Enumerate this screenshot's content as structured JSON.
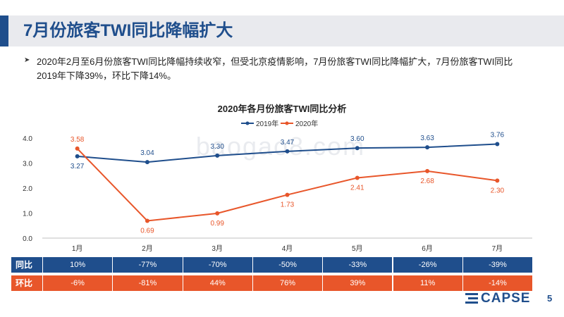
{
  "slide": {
    "title": "7月份旅客TWI同比降幅扩大",
    "bullet_line1": "2020年2月至6月份旅客TWI同比降幅持续收窄，但受北京疫情影响，7月份旅客TWI同比降幅扩大，7月份旅客TWI同比",
    "bullet_line2": "2019年下降39%，环比下降14%。",
    "page_number": "5",
    "logo_text": "CAPSE",
    "watermark": "baogao8.com"
  },
  "colors": {
    "primary": "#1f4e8c",
    "accent": "#e8562a"
  },
  "chart_data": {
    "type": "line",
    "title": "2020年各月份旅客TWI同比分析",
    "categories": [
      "1月",
      "2月",
      "3月",
      "4月",
      "5月",
      "6月",
      "7月"
    ],
    "series": [
      {
        "name": "2019年",
        "values": [
          3.27,
          3.04,
          3.3,
          3.47,
          3.6,
          3.63,
          3.76
        ],
        "labels": [
          "3.27",
          "3.04",
          "3.30",
          "3.47",
          "3.60",
          "3.63",
          "3.76"
        ]
      },
      {
        "name": "2020年",
        "values": [
          3.58,
          0.69,
          0.99,
          1.73,
          2.41,
          2.68,
          2.3
        ],
        "labels": [
          "3.58",
          "0.69",
          "0.99",
          "1.73",
          "2.41",
          "2.68",
          "2.30"
        ]
      }
    ],
    "ylim": [
      0,
      4
    ],
    "yticks": [
      "0.0",
      "1.0",
      "2.0",
      "3.0",
      "4.0"
    ],
    "legend": "top-center"
  },
  "table": {
    "rows": [
      {
        "label": "同比",
        "values": [
          "10%",
          "-77%",
          "-70%",
          "-50%",
          "-33%",
          "-26%",
          "-39%"
        ]
      },
      {
        "label": "环比",
        "values": [
          "-6%",
          "-81%",
          "44%",
          "76%",
          "39%",
          "11%",
          "-14%"
        ]
      }
    ]
  }
}
